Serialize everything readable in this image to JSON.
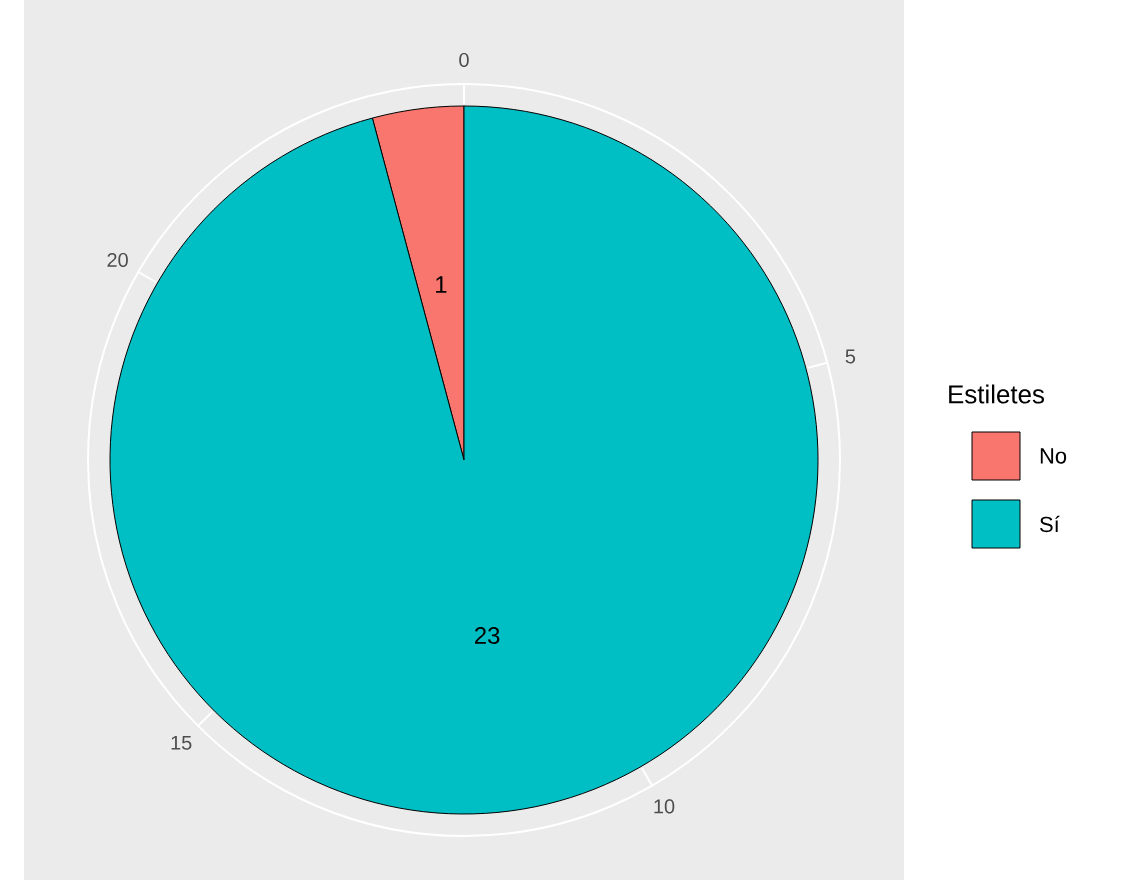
{
  "chart_data": {
    "type": "pie",
    "categories": [
      "No",
      "Sí"
    ],
    "values": [
      1,
      23
    ],
    "colors": [
      "#f8766d",
      "#00bfc4"
    ],
    "legend_title": "Estiletes",
    "legend": "right",
    "data_labels": true,
    "grid": true,
    "annotations": [
      "0",
      "5",
      "10",
      "15",
      "20"
    ]
  }
}
